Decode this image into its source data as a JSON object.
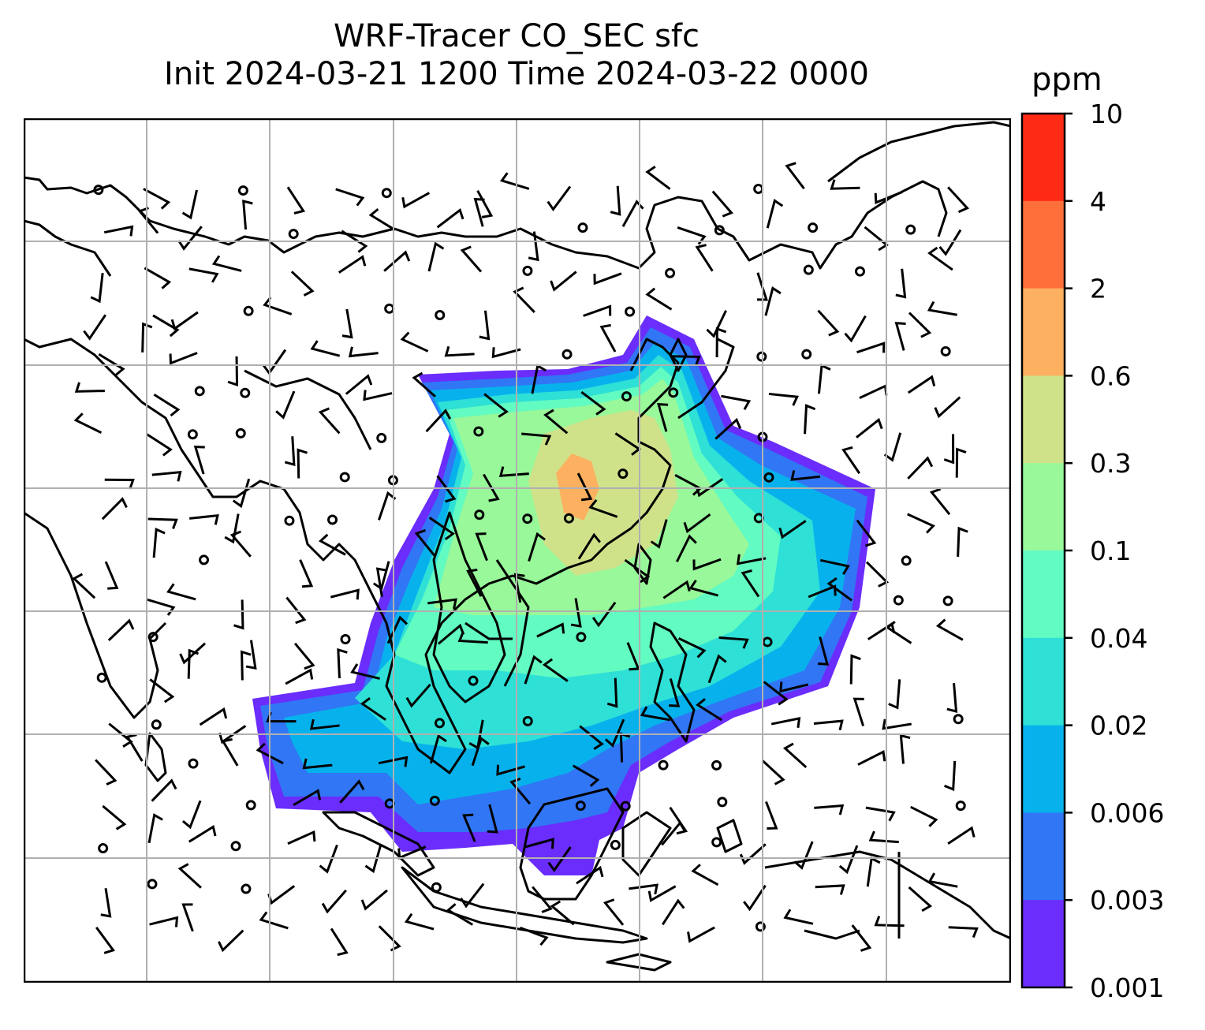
{
  "title": {
    "line1": "WRF-Tracer CO_SEC sfc",
    "line2": "Init 2024-03-21 1200 Time 2024-03-22 0000"
  },
  "colorbar": {
    "units": "ppm",
    "levels": [
      "10",
      "4",
      "2",
      "0.6",
      "0.3",
      "0.1",
      "0.04",
      "0.02",
      "0.006",
      "0.003",
      "0.001"
    ],
    "colors": [
      "#ff2a16",
      "#ff6f3a",
      "#fdb060",
      "#cfe28a",
      "#98f89a",
      "#62fbc2",
      "#2ee0d6",
      "#07b2ec",
      "#3176f4",
      "#6a2dfb"
    ]
  },
  "map": {
    "region": "East / Southeast Asia",
    "gridlines": true,
    "coastlines": true,
    "wind_barbs": true,
    "tracer_palette": {
      "c0": "#6a2dfb",
      "c1": "#3176f4",
      "c2": "#07b2ec",
      "c3": "#2ee0d6",
      "c4": "#62fbc2",
      "c5": "#98f89a",
      "c6": "#cfe28a",
      "c7": "#fdb060"
    }
  }
}
